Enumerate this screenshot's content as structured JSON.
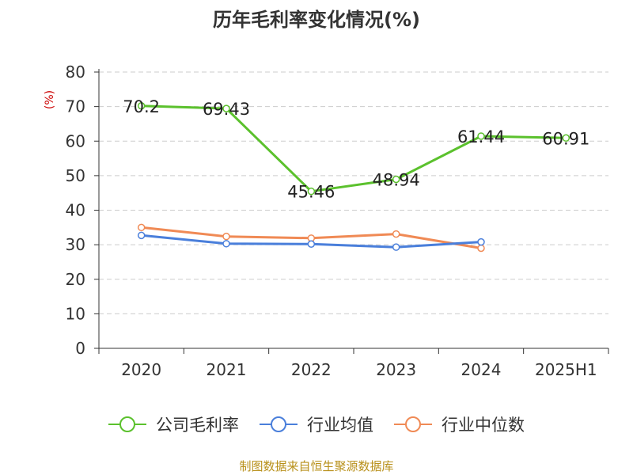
{
  "chart_data": {
    "type": "line",
    "title": "历年毛利率变化情况(%)",
    "ylabel": "(%)",
    "xlabel": "",
    "categories": [
      "2020",
      "2021",
      "2022",
      "2023",
      "2024",
      "2025H1"
    ],
    "ylim": [
      0,
      80
    ],
    "yticks": [
      0,
      10,
      20,
      30,
      40,
      50,
      60,
      70,
      80
    ],
    "grid": true,
    "legend_position": "bottom",
    "series": [
      {
        "name": "公司毛利率",
        "color": "#5bc12d",
        "values": [
          70.2,
          69.43,
          45.46,
          48.94,
          61.44,
          60.91
        ],
        "labels": [
          "70.2",
          "69.43",
          "45.46",
          "48.94",
          "61.44",
          "60.91"
        ]
      },
      {
        "name": "行业均值",
        "color": "#4a7fdb",
        "values": [
          32.7,
          30.3,
          30.2,
          29.3,
          30.8,
          null
        ]
      },
      {
        "name": "行业中位数",
        "color": "#f08a55",
        "values": [
          35.0,
          32.4,
          31.9,
          33.1,
          29.0,
          null
        ]
      }
    ]
  },
  "footer": {
    "source": "制图数据来自恒生聚源数据库"
  }
}
